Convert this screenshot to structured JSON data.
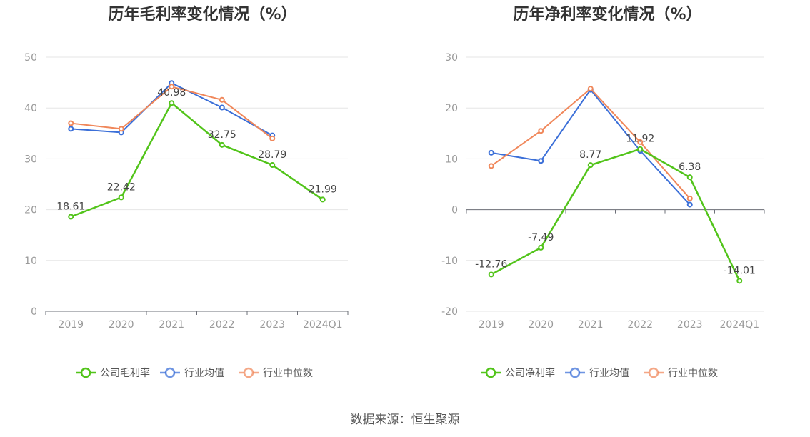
{
  "source_text": "数据来源：恒生聚源",
  "chart_data": [
    {
      "type": "line",
      "title": "历年毛利率变化情况（%）",
      "categories": [
        "2019",
        "2020",
        "2021",
        "2022",
        "2023",
        "2024Q1"
      ],
      "ylim": [
        0,
        50
      ],
      "yticks": [
        0,
        10,
        20,
        30,
        40,
        50
      ],
      "grid": true,
      "legend_position": "bottom-center",
      "series": [
        {
          "name": "公司毛利率",
          "color": "#52c41a",
          "show_labels": true,
          "values": [
            18.61,
            22.42,
            40.98,
            32.75,
            28.79,
            21.99
          ],
          "labels": [
            "18.61",
            "22.42",
            "40.98",
            "32.75",
            "28.79",
            "21.99"
          ]
        },
        {
          "name": "行业均值",
          "color": "#3b6fd8",
          "show_labels": false,
          "values": [
            35.9,
            35.2,
            44.9,
            40.1,
            34.6,
            null
          ]
        },
        {
          "name": "行业中位数",
          "color": "#f0875a",
          "show_labels": false,
          "values": [
            37.0,
            35.9,
            44.2,
            41.6,
            34.0,
            null
          ]
        }
      ]
    },
    {
      "type": "line",
      "title": "历年净利率变化情况（%）",
      "categories": [
        "2019",
        "2020",
        "2021",
        "2022",
        "2023",
        "2024Q1"
      ],
      "ylim": [
        -20,
        30
      ],
      "yticks": [
        -20,
        -10,
        0,
        10,
        20,
        30
      ],
      "grid": true,
      "legend_position": "bottom-center",
      "series": [
        {
          "name": "公司净利率",
          "color": "#52c41a",
          "show_labels": true,
          "values": [
            -12.76,
            -7.49,
            8.77,
            11.92,
            6.38,
            -14.01
          ],
          "labels": [
            "-12.76",
            "-7.49",
            "8.77",
            "11.92",
            "6.38",
            "-14.01"
          ]
        },
        {
          "name": "行业均值",
          "color": "#3b6fd8",
          "show_labels": false,
          "values": [
            11.2,
            9.6,
            23.6,
            11.6,
            1.0,
            null
          ]
        },
        {
          "name": "行业中位数",
          "color": "#f0875a",
          "show_labels": false,
          "values": [
            8.6,
            15.5,
            23.8,
            13.3,
            2.2,
            null
          ]
        }
      ]
    }
  ]
}
